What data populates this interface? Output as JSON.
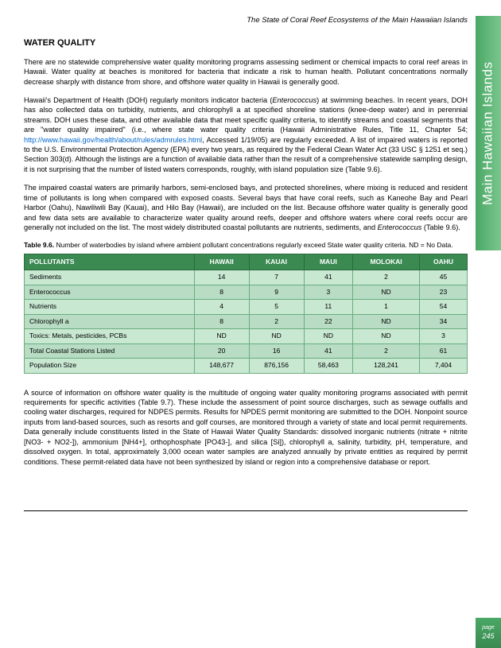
{
  "header": {
    "title": "The State of Coral Reef Ecosystems of the Main Hawaiian Islands"
  },
  "side_tab": "Main Hawaiian Islands",
  "page_label": "page",
  "page_number": "245",
  "section_title": "WATER QUALITY",
  "paragraphs": {
    "p1": "There are no statewide comprehensive water quality monitoring programs assessing sediment or chemical impacts to coral reef areas in Hawaii.  Water quality at beaches is monitored for bacteria that indicate a risk to human health.  Pollutant concentrations normally decrease sharply with distance from shore, and offshore water quality in Hawaii is generally good.",
    "p2a": "Hawaii's Department of Health (DOH) regularly monitors indicator bacteria (",
    "p2b": "Enterococcus",
    "p2c": ") at swimming beaches.  In recent years, DOH has also collected data on turbidity, nutrients, and chlorophyll a at specified shoreline stations (knee-deep water) and in perennial streams.  DOH uses these data, and other available data that meet specific quality criteria, to identify streams and coastal segments that are \"water quality impaired\" (i.e., where state water quality criteria (Hawaii Administrative Rules, Title 11, Chapter 54; ",
    "p2link": "http://www.hawaii.gov/health/about/rules/admrules.html",
    "p2d": ", Accessed 1/19/05) are regularly exceeded.  A list of impaired waters is reported to the U.S. Environmental Protection Agency (EPA) every two years, as required by the Federal Clean Water Act (33 USC § 1251 et seq.) Section 303(d).  Although the listings are a function of available data rather than the result of a comprehensive statewide sampling design, it is not surprising that the number of listed waters corresponds, roughly, with island population size (Table 9.6).",
    "p3a": "The impaired coastal waters are primarily harbors, semi-enclosed bays, and protected shorelines, where mixing is reduced and resident time of pollutants is long when compared with exposed coasts.  Several bays that have coral reefs, such as Kaneohe Bay and Pearl Harbor (Oahu), Nawiliwili Bay (Kauai), and Hilo Bay (Hawaii), are included on the list.  Because offshore water quality is generally good and few data sets are available to characterize water quality around reefs, deeper and offshore waters where coral reefs occur are generally not included on the list.  The most widely distributed coastal pollutants are nutrients, sediments, and ",
    "p3b": "Enterococcus",
    "p3c": " (Table 9.6).",
    "p4": "A source of information on offshore water quality is the multitude of ongoing water quality monitoring programs associated with permit requirements for specific activities (Table 9.7).  These include the assessment of point source discharges, such as sewage outfalls and cooling water discharges, required for NDPES permits.  Results for NPDES permit monitoring are submitted to the DOH.  Nonpoint source inputs from land-based sources, such as resorts and golf courses, are monitored through a variety of state and local permit requirements.  Data generally include constituents listed in the State of Hawaii Water Quality Standards: dissolved inorganic nutrients (nitrate + nitrite [NO3- + NO2-]), ammonium [NH4+], orthophosphate [PO43-], and silica [Si]), chlorophyll a, salinity, turbidity, pH, temperature, and dissolved oxygen.  In total, approximately 3,000 ocean water samples are analyzed annually by private entities as required by permit conditions.  These permit-related data have not been synthesized by island or region into a comprehensive database or report."
  },
  "table": {
    "caption_bold": "Table 9.6.",
    "caption": "Number of waterbodies by island where ambient pollutant concentrations regularly exceed State water quality criteria. ND = No Data.",
    "columns": [
      "POLLUTANTS",
      "HAWAII",
      "KAUAI",
      "MAUI",
      "MOLOKAI",
      "OAHU"
    ],
    "rows": [
      [
        "Sediments",
        "14",
        "7",
        "41",
        "2",
        "45"
      ],
      [
        "Enterococcus",
        "8",
        "9",
        "3",
        "ND",
        "23"
      ],
      [
        "Nutrients",
        "4",
        "5",
        "11",
        "1",
        "54"
      ],
      [
        "Chlorophyll a",
        "8",
        "2",
        "22",
        "ND",
        "34"
      ],
      [
        "Toxics: Metals, pesticides, PCBs",
        "ND",
        "ND",
        "ND",
        "ND",
        "3"
      ],
      [
        "Total Coastal Stations Listed",
        "20",
        "16",
        "41",
        "2",
        "61"
      ],
      [
        "Population Size",
        "148,677",
        "876,156",
        "58,463",
        "128,241",
        "7,404"
      ]
    ],
    "header_bg": "#3a8a52",
    "row_bg": "#c8e8d2",
    "row_alt_bg": "#b8dcc4",
    "border_color": "#6aad7c"
  }
}
